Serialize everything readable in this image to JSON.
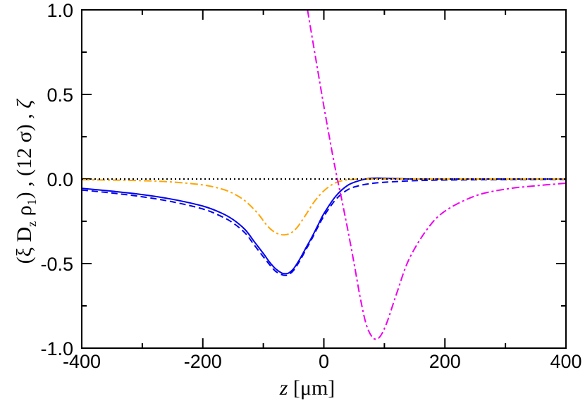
{
  "chart_data": {
    "type": "line",
    "xlabel": {
      "var": "z",
      "unit": " [μm]"
    },
    "ylabel": {
      "p1": "(ξ D",
      "s1": "z",
      "p2": " ρ",
      "s2": "1",
      "p3": ") , (12 σ) , ",
      "p4": "ζ"
    },
    "xlim": [
      -400,
      400
    ],
    "ylim": [
      -1.0,
      1.0
    ],
    "xticks": [
      -400,
      -200,
      0,
      200,
      400
    ],
    "xtick_labels": [
      "-400",
      "-200",
      "0",
      "200",
      "400"
    ],
    "yticks": [
      -1.0,
      -0.5,
      0.0,
      0.5,
      1.0
    ],
    "ytick_labels": [
      "-1.0",
      "-0.5",
      "0.0",
      "0.5",
      "1.0"
    ],
    "series": [
      {
        "name": "blue-solid",
        "color": "#0000ee",
        "dash": "solid",
        "x": [
          -400,
          -350,
          -300,
          -250,
          -200,
          -170,
          -150,
          -130,
          -115,
          -100,
          -90,
          -80,
          -70,
          -64,
          -58,
          -50,
          -40,
          -30,
          -20,
          -10,
          0,
          20,
          40,
          60,
          75,
          90,
          100,
          120,
          150,
          200,
          300,
          400
        ],
        "y": [
          -0.055,
          -0.072,
          -0.092,
          -0.12,
          -0.16,
          -0.2,
          -0.24,
          -0.3,
          -0.37,
          -0.44,
          -0.49,
          -0.53,
          -0.555,
          -0.56,
          -0.556,
          -0.53,
          -0.475,
          -0.41,
          -0.345,
          -0.275,
          -0.205,
          -0.1,
          -0.036,
          -0.008,
          0.003,
          0.005,
          0.004,
          0.002,
          0.0,
          0.0,
          0.0,
          0.0
        ]
      },
      {
        "name": "blue-dashed",
        "color": "#0000ee",
        "dash": "dashed",
        "x": [
          -400,
          -350,
          -300,
          -250,
          -200,
          -170,
          -150,
          -130,
          -115,
          -100,
          -90,
          -80,
          -70,
          -64,
          -58,
          -50,
          -40,
          -30,
          -20,
          -10,
          0,
          20,
          40,
          60,
          80,
          100,
          150,
          200,
          300,
          400
        ],
        "y": [
          -0.065,
          -0.083,
          -0.105,
          -0.135,
          -0.177,
          -0.22,
          -0.26,
          -0.32,
          -0.39,
          -0.46,
          -0.505,
          -0.545,
          -0.565,
          -0.57,
          -0.565,
          -0.54,
          -0.485,
          -0.42,
          -0.355,
          -0.285,
          -0.22,
          -0.12,
          -0.062,
          -0.038,
          -0.026,
          -0.019,
          -0.01,
          -0.006,
          -0.003,
          -0.002
        ]
      },
      {
        "name": "orange-dashdot",
        "color": "#ffa500",
        "dash": "dashdot",
        "x": [
          -400,
          -300,
          -250,
          -200,
          -170,
          -150,
          -130,
          -110,
          -95,
          -85,
          -75,
          -65,
          -55,
          -45,
          -35,
          -25,
          -15,
          0,
          15,
          30,
          50,
          70,
          100,
          150,
          200,
          300,
          400
        ],
        "y": [
          -0.004,
          -0.01,
          -0.018,
          -0.035,
          -0.058,
          -0.085,
          -0.13,
          -0.2,
          -0.27,
          -0.305,
          -0.325,
          -0.33,
          -0.32,
          -0.29,
          -0.24,
          -0.185,
          -0.13,
          -0.07,
          -0.03,
          -0.01,
          -0.002,
          0.0,
          0.0,
          0.0,
          0.0,
          0.0,
          0.0
        ]
      },
      {
        "name": "magenta-dashdot",
        "color": "#ee00ee",
        "dash": "dashdot",
        "x": [
          -27,
          -10,
          0,
          10,
          20,
          30,
          40,
          50,
          60,
          70,
          80,
          88,
          95,
          105,
          120,
          140,
          170,
          200,
          250,
          300,
          350,
          400
        ],
        "y": [
          1.0,
          0.64,
          0.43,
          0.23,
          0.04,
          -0.13,
          -0.31,
          -0.5,
          -0.7,
          -0.86,
          -0.935,
          -0.945,
          -0.92,
          -0.84,
          -0.68,
          -0.48,
          -0.3,
          -0.19,
          -0.1,
          -0.06,
          -0.04,
          -0.025
        ]
      },
      {
        "name": "zero-reference",
        "color": "#000000",
        "dash": "dotted",
        "x": [
          -400,
          400
        ],
        "y": [
          0.0,
          0.0
        ]
      }
    ]
  }
}
